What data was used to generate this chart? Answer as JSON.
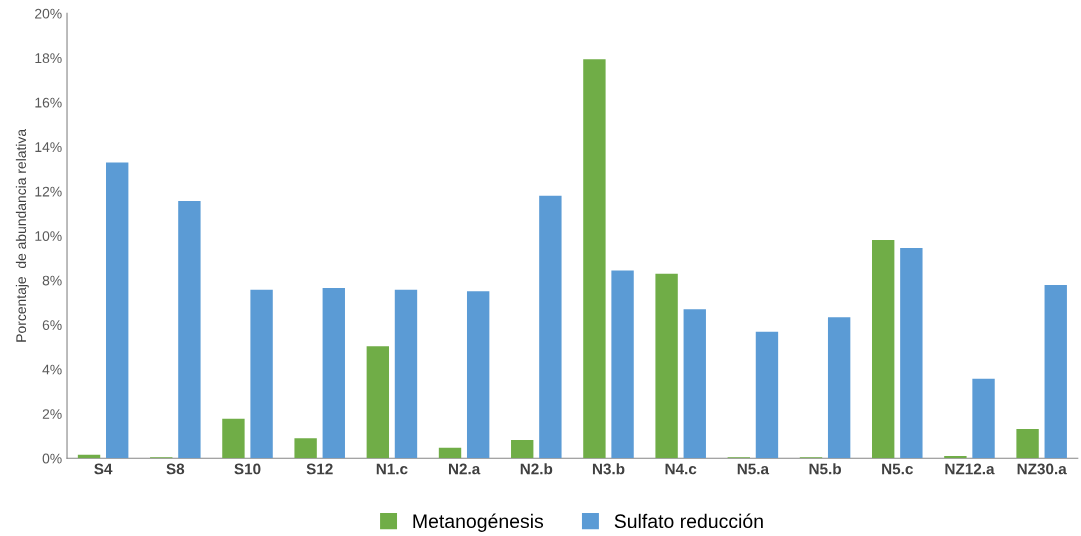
{
  "chart_data": {
    "type": "bar",
    "ylabel": "Porcentaje  de abundancia relativa",
    "categories": [
      "S4",
      "S8",
      "S10",
      "S12",
      "N1.c",
      "N2.a",
      "N2.b",
      "N3.b",
      "N4.c",
      "N5.a",
      "N5.b",
      "N5.c",
      "NZ12.a",
      "NZ30.a"
    ],
    "series": [
      {
        "name": "Metanogénesis",
        "color": "#70ad47",
        "values": [
          0.16,
          0.05,
          1.78,
          0.9,
          5.04,
          0.47,
          0.82,
          17.94,
          8.3,
          0.05,
          0.05,
          9.81,
          0.1,
          1.32
        ]
      },
      {
        "name": "Sulfato reducción",
        "color": "#5b9bd5",
        "values": [
          13.3,
          11.57,
          7.58,
          7.66,
          7.58,
          7.51,
          11.8,
          8.44,
          6.7,
          5.69,
          6.34,
          9.45,
          3.58,
          7.79
        ]
      }
    ],
    "ylim": [
      0,
      20
    ],
    "yticks": [
      {
        "value": 0,
        "label": "0%"
      },
      {
        "value": 2,
        "label": "2%"
      },
      {
        "value": 4,
        "label": "4%"
      },
      {
        "value": 6,
        "label": "6%"
      },
      {
        "value": 8,
        "label": "8%"
      },
      {
        "value": 10,
        "label": "10%"
      },
      {
        "value": 12,
        "label": "12%"
      },
      {
        "value": 14,
        "label": "14%"
      },
      {
        "value": 16,
        "label": "16%"
      },
      {
        "value": 18,
        "label": "18%"
      },
      {
        "value": 20,
        "label": "20%"
      }
    ],
    "grid": false,
    "legend": "bottom"
  }
}
